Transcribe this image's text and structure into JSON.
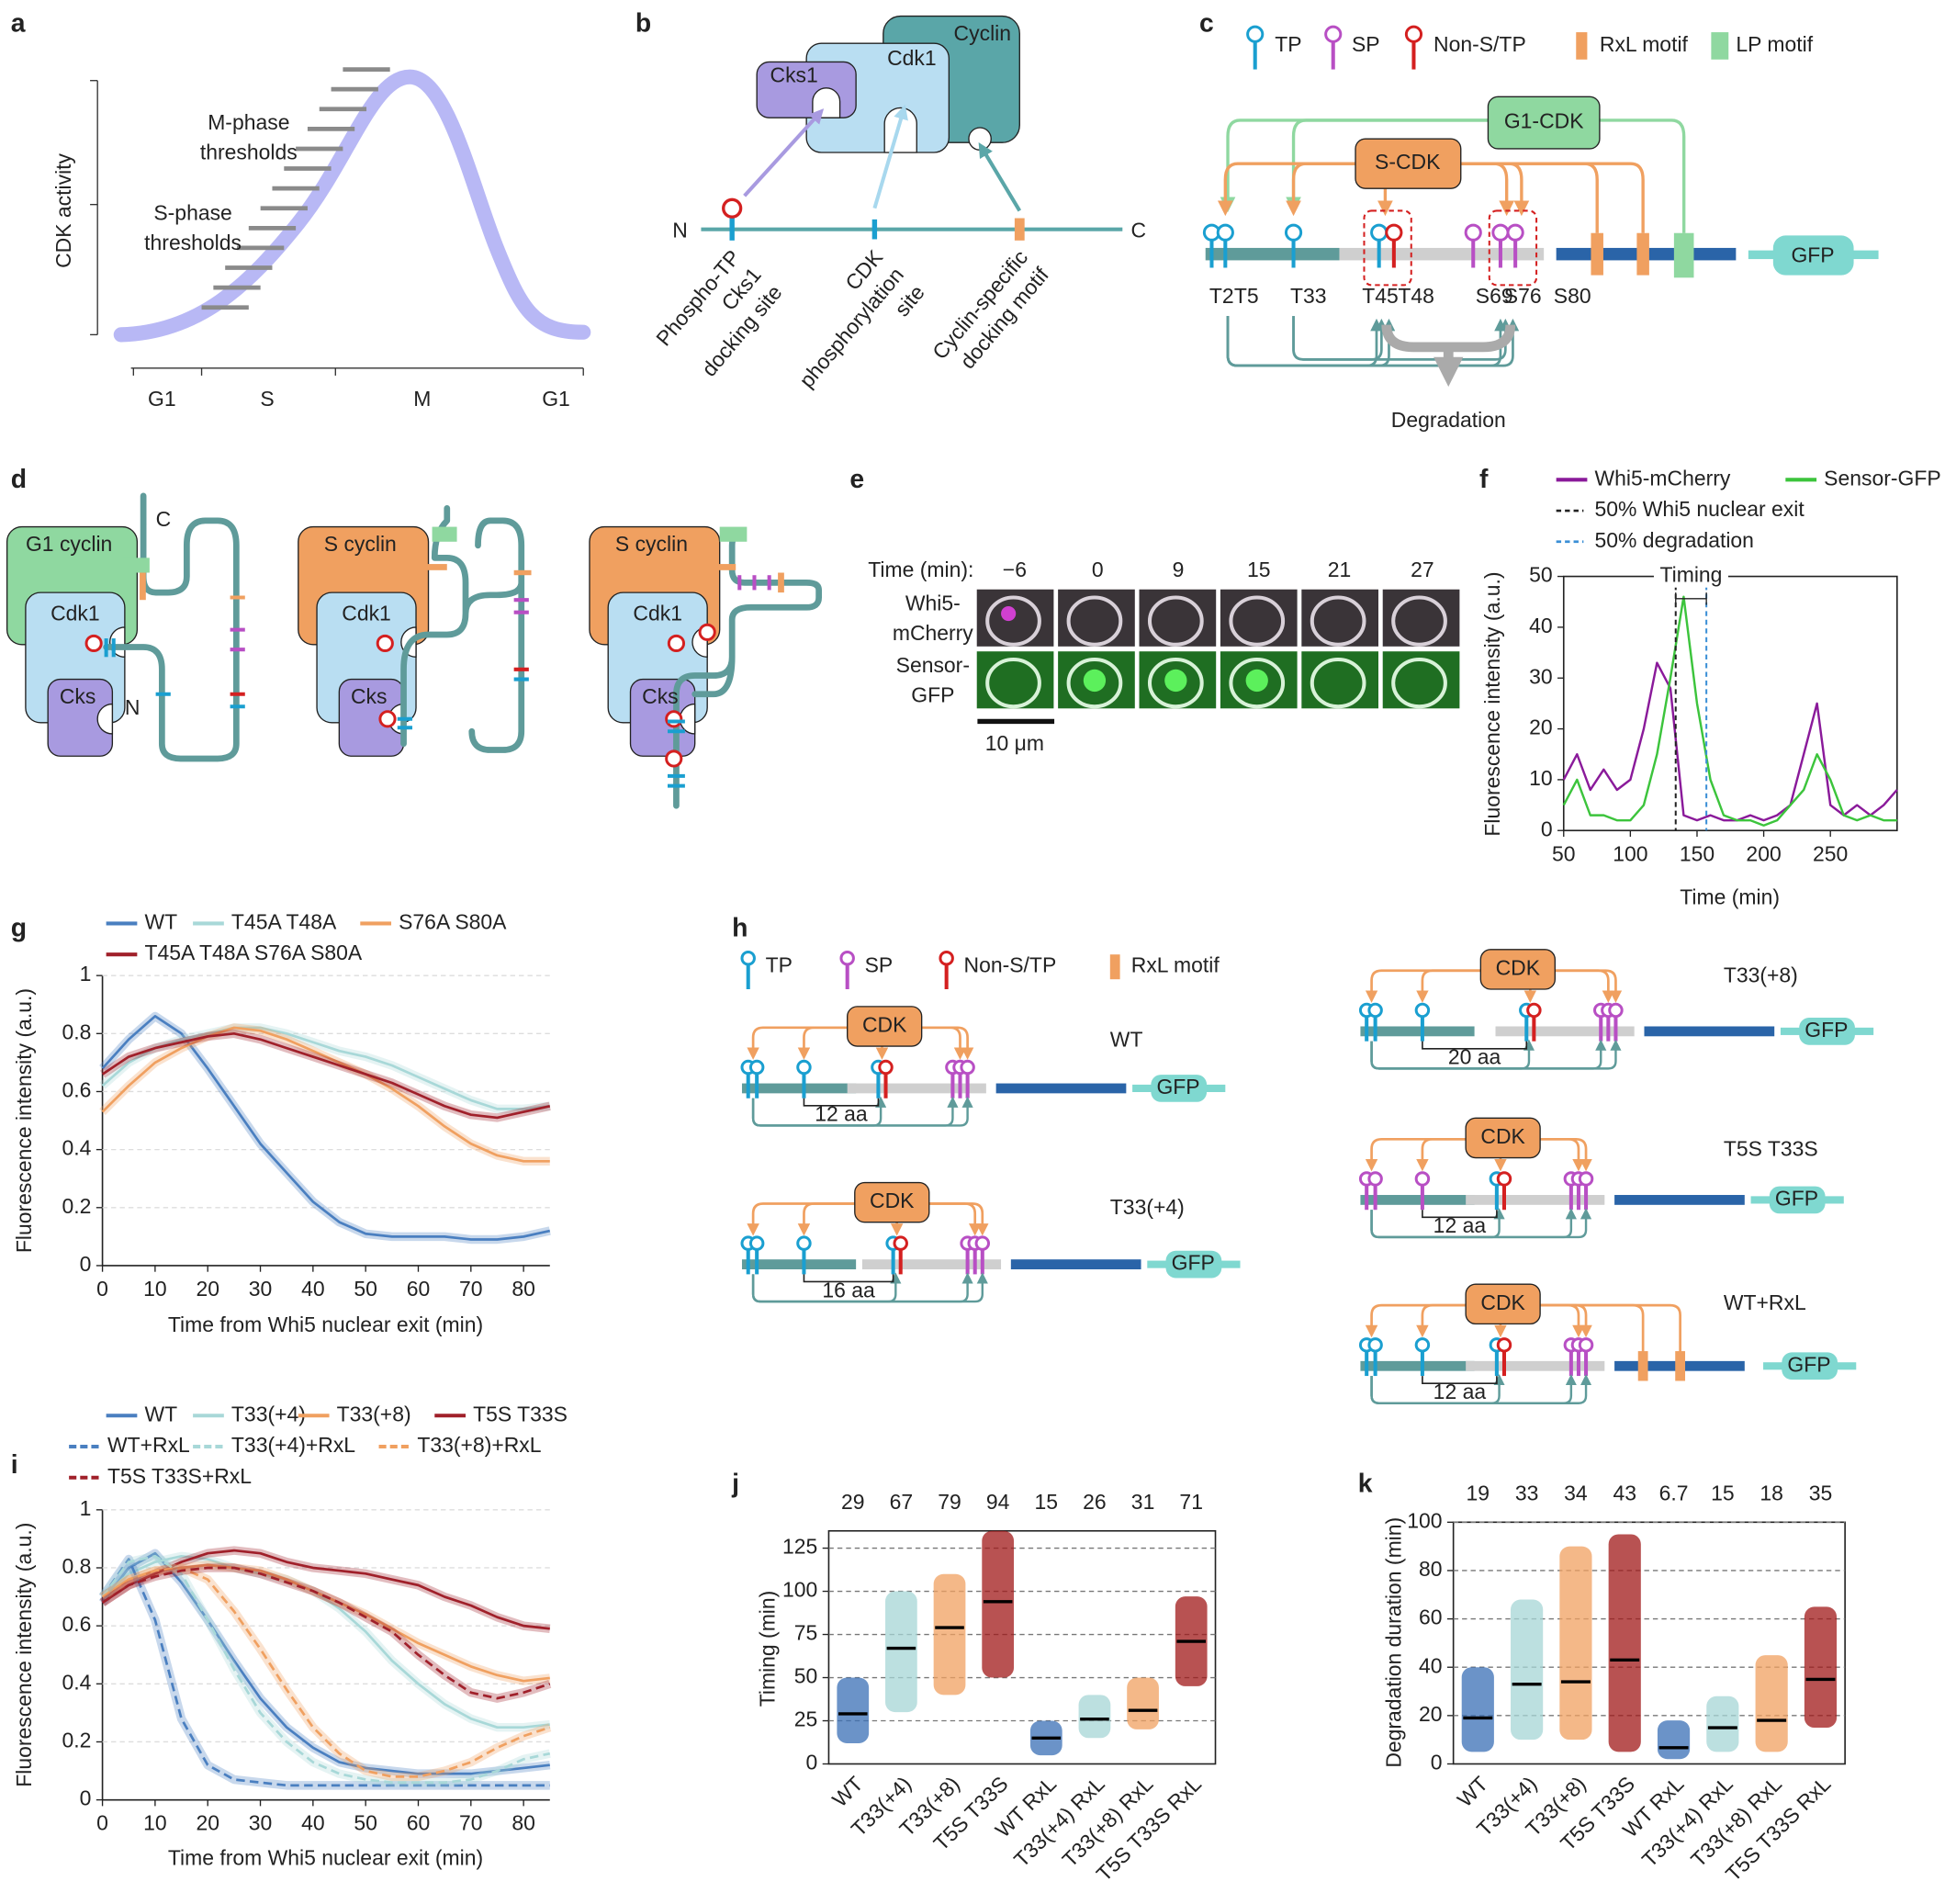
{
  "panel_labels": [
    "a",
    "b",
    "c",
    "d",
    "e",
    "f",
    "g",
    "h",
    "i",
    "j",
    "k"
  ],
  "a": {
    "y_label": "CDK activity",
    "m_phase": [
      "M-phase",
      "thresholds"
    ],
    "s_phase": [
      "S-phase",
      "thresholds"
    ],
    "phases": [
      "G1",
      "S",
      "M",
      "G1"
    ]
  },
  "b": {
    "proteins": [
      "Cyclin",
      "Cdk1",
      "Cks1"
    ],
    "n_term": "N",
    "c_term": "C",
    "sites": [
      [
        "Phospho-TP",
        "Cks1",
        "docking site"
      ],
      [
        "CDK",
        "phosphorylation",
        "site"
      ],
      [
        "Cyclin-specific",
        "docking motif"
      ]
    ]
  },
  "c": {
    "legend": [
      "TP",
      "SP",
      "Non-S/TP",
      "RxL motif",
      "LP motif"
    ],
    "kinases": [
      "G1-CDK",
      "S-CDK"
    ],
    "sites": [
      "T2",
      "T5",
      "T33",
      "T45",
      "T48",
      "S69",
      "S76",
      "S80"
    ],
    "reporter": "GFP",
    "outcome": "Degradation"
  },
  "d": {
    "complexes": [
      {
        "cyclin": "G1 cyclin",
        "cdk": "Cdk1",
        "cks": "Cks"
      },
      {
        "cyclin": "S cyclin",
        "cdk": "Cdk1",
        "cks": "Cks"
      },
      {
        "cyclin": "S cyclin",
        "cdk": "Cdk1",
        "cks": "Cks"
      }
    ],
    "c_term": "C",
    "n_term": "N"
  },
  "e": {
    "time_label": "Time (min):",
    "times": [
      "−6",
      "0",
      "9",
      "15",
      "21",
      "27"
    ],
    "rows": [
      [
        "Whi5-",
        "mCherry"
      ],
      [
        "Sensor-",
        "GFP"
      ]
    ],
    "scale_bar": "10 μm"
  },
  "h": {
    "legend": [
      "TP",
      "SP",
      "Non-S/TP",
      "RxL motif"
    ],
    "constructs": [
      {
        "name": "WT",
        "kinase": "CDK",
        "spacing": "12 aa",
        "reporter": "GFP"
      },
      {
        "name": "T33(+4)",
        "kinase": "CDK",
        "spacing": "16 aa",
        "reporter": "GFP"
      },
      {
        "name": "T33(+8)",
        "kinase": "CDK",
        "spacing": "20 aa",
        "reporter": "GFP"
      },
      {
        "name": "T5S T33S",
        "kinase": "CDK",
        "spacing": "12 aa",
        "reporter": "GFP"
      },
      {
        "name": "WT+RxL",
        "kinase": "CDK",
        "spacing": "12 aa",
        "reporter": "GFP"
      }
    ]
  },
  "chart_data": [
    {
      "type": "line",
      "x_label": "Time (min)",
      "y_label": "Fluorescence intensity (a.u.)",
      "xlim": [
        50,
        300
      ],
      "ylim": [
        0,
        50
      ],
      "xticks": [
        50,
        100,
        150,
        200,
        250
      ],
      "yticks": [
        0,
        10,
        20,
        30,
        40,
        50
      ],
      "x": [
        50,
        60,
        70,
        80,
        90,
        100,
        110,
        120,
        130,
        140,
        150,
        160,
        170,
        180,
        190,
        200,
        210,
        220,
        230,
        240,
        250,
        260,
        270,
        280,
        290,
        300
      ],
      "series": [
        {
          "name": "Whi5-mCherry",
          "color": "#8a1a9a",
          "values": [
            10,
            15,
            8,
            12,
            8,
            10,
            20,
            33,
            28,
            3,
            2,
            3,
            2,
            2,
            3,
            2,
            3,
            5,
            15,
            25,
            5,
            3,
            5,
            3,
            5,
            8
          ]
        },
        {
          "name": "Sensor-GFP",
          "color": "#3cc43c",
          "values": [
            5,
            10,
            3,
            3,
            2,
            2,
            5,
            15,
            30,
            46,
            25,
            10,
            3,
            2,
            2,
            1,
            2,
            5,
            8,
            15,
            10,
            3,
            2,
            3,
            2,
            2
          ]
        }
      ],
      "markers": [
        {
          "name": "50% Whi5 nuclear exit",
          "x": 134,
          "color": "#222222"
        },
        {
          "name": "50% degradation",
          "x": 157,
          "color": "#3b8fd6"
        }
      ],
      "annotation": "Timing"
    },
    {
      "type": "line",
      "x_label": "Time from Whi5 nuclear exit (min)",
      "y_label": "Fluorescence intensity (a.u.)",
      "xlim": [
        0,
        85
      ],
      "ylim": [
        0,
        1
      ],
      "xticks": [
        0,
        10,
        20,
        30,
        40,
        50,
        60,
        70,
        80
      ],
      "yticks": [
        0,
        0.2,
        0.4,
        0.6,
        0.8,
        1
      ],
      "grid": true,
      "x": [
        0,
        5,
        10,
        15,
        20,
        25,
        30,
        35,
        40,
        45,
        50,
        55,
        60,
        65,
        70,
        75,
        80,
        85
      ],
      "series": [
        {
          "name": "WT",
          "color": "#4a7fc0",
          "values": [
            0.68,
            0.78,
            0.86,
            0.8,
            0.68,
            0.55,
            0.42,
            0.32,
            0.22,
            0.15,
            0.11,
            0.1,
            0.1,
            0.1,
            0.09,
            0.09,
            0.1,
            0.12
          ]
        },
        {
          "name": "T45A T48A",
          "color": "#a8d8d8",
          "values": [
            0.62,
            0.7,
            0.75,
            0.78,
            0.8,
            0.82,
            0.82,
            0.8,
            0.77,
            0.74,
            0.72,
            0.69,
            0.65,
            0.61,
            0.57,
            0.54,
            0.54,
            0.55
          ]
        },
        {
          "name": "S76A S80A",
          "color": "#f0a060",
          "values": [
            0.53,
            0.62,
            0.7,
            0.75,
            0.79,
            0.82,
            0.81,
            0.78,
            0.74,
            0.7,
            0.66,
            0.61,
            0.55,
            0.48,
            0.42,
            0.38,
            0.36,
            0.36
          ]
        },
        {
          "name": "T45A T48A S76A S80A",
          "color": "#a0202a",
          "values": [
            0.66,
            0.72,
            0.75,
            0.77,
            0.79,
            0.8,
            0.78,
            0.75,
            0.72,
            0.69,
            0.66,
            0.63,
            0.59,
            0.55,
            0.52,
            0.51,
            0.53,
            0.55
          ]
        }
      ]
    },
    {
      "type": "line",
      "x_label": "Time from Whi5 nuclear exit (min)",
      "y_label": "Fluorescence intensity (a.u.)",
      "xlim": [
        0,
        85
      ],
      "ylim": [
        0,
        1
      ],
      "xticks": [
        0,
        10,
        20,
        30,
        40,
        50,
        60,
        70,
        80
      ],
      "yticks": [
        0,
        0.2,
        0.4,
        0.6,
        0.8,
        1
      ],
      "grid": true,
      "x": [
        0,
        5,
        10,
        15,
        20,
        25,
        30,
        35,
        40,
        45,
        50,
        55,
        60,
        65,
        70,
        75,
        80,
        85
      ],
      "series": [
        {
          "name": "WT",
          "color": "#4a7fc0",
          "values": [
            0.68,
            0.8,
            0.85,
            0.75,
            0.62,
            0.48,
            0.35,
            0.25,
            0.18,
            0.13,
            0.11,
            0.1,
            0.09,
            0.09,
            0.09,
            0.1,
            0.11,
            0.12
          ]
        },
        {
          "name": "T33(+4)",
          "color": "#a8d8d8",
          "values": [
            0.7,
            0.78,
            0.82,
            0.84,
            0.83,
            0.8,
            0.78,
            0.76,
            0.72,
            0.66,
            0.58,
            0.48,
            0.4,
            0.33,
            0.28,
            0.25,
            0.25,
            0.26
          ]
        },
        {
          "name": "T33(+8)",
          "color": "#f0a060",
          "values": [
            0.7,
            0.76,
            0.79,
            0.8,
            0.81,
            0.8,
            0.79,
            0.76,
            0.72,
            0.68,
            0.64,
            0.59,
            0.54,
            0.5,
            0.46,
            0.43,
            0.41,
            0.42
          ]
        },
        {
          "name": "T5S T33S",
          "color": "#a0202a",
          "values": [
            0.68,
            0.74,
            0.78,
            0.82,
            0.85,
            0.86,
            0.85,
            0.82,
            0.8,
            0.79,
            0.78,
            0.76,
            0.74,
            0.7,
            0.67,
            0.63,
            0.6,
            0.59
          ]
        },
        {
          "name": "WT+RxL",
          "color": "#4a7fc0",
          "dash": true,
          "values": [
            0.7,
            0.83,
            0.62,
            0.28,
            0.12,
            0.07,
            0.06,
            0.05,
            0.05,
            0.05,
            0.05,
            0.05,
            0.05,
            0.05,
            0.05,
            0.05,
            0.05,
            0.05
          ]
        },
        {
          "name": "T33(+4)+RxL",
          "color": "#a8d8d8",
          "dash": true,
          "values": [
            0.7,
            0.82,
            0.84,
            0.78,
            0.62,
            0.45,
            0.3,
            0.2,
            0.13,
            0.09,
            0.07,
            0.06,
            0.06,
            0.06,
            0.07,
            0.1,
            0.14,
            0.16
          ]
        },
        {
          "name": "T33(+8)+RxL",
          "color": "#f0a060",
          "dash": true,
          "values": [
            0.7,
            0.76,
            0.79,
            0.8,
            0.76,
            0.65,
            0.52,
            0.38,
            0.25,
            0.16,
            0.1,
            0.08,
            0.08,
            0.1,
            0.13,
            0.18,
            0.22,
            0.25
          ]
        },
        {
          "name": "T5S T33S+RxL",
          "color": "#a0202a",
          "dash": true,
          "values": [
            0.68,
            0.74,
            0.77,
            0.79,
            0.8,
            0.8,
            0.78,
            0.75,
            0.72,
            0.68,
            0.63,
            0.58,
            0.5,
            0.43,
            0.37,
            0.35,
            0.37,
            0.4
          ]
        }
      ]
    },
    {
      "type": "dot",
      "y_label": "Timing (min)",
      "ylim": [
        0,
        135
      ],
      "yticks": [
        0,
        25,
        50,
        75,
        100,
        125
      ],
      "grid": true,
      "categories": [
        "WT",
        "T33(+4)",
        "T33(+8)",
        "T5S T33S",
        "WT RxL",
        "T33(+4) RxL",
        "T33(+8) RxL",
        "T5S T33S RxL"
      ],
      "values": [
        29,
        67,
        79,
        94,
        15,
        26,
        31,
        71
      ],
      "ranges": [
        [
          12,
          50
        ],
        [
          30,
          100
        ],
        [
          40,
          110
        ],
        [
          50,
          135
        ],
        [
          5,
          25
        ],
        [
          15,
          40
        ],
        [
          20,
          50
        ],
        [
          45,
          97
        ]
      ],
      "colors": [
        "#3a6fb5",
        "#a6d6d6",
        "#f0a060",
        "#a01818",
        "#3a6fb5",
        "#a6d6d6",
        "#f0a060",
        "#a01818"
      ]
    },
    {
      "type": "dot",
      "y_label": "Degradation duration (min)",
      "ylim": [
        0,
        100
      ],
      "yticks": [
        0,
        20,
        40,
        60,
        80,
        100
      ],
      "grid": true,
      "categories": [
        "WT",
        "T33(+4)",
        "T33(+8)",
        "T5S T33S",
        "WT RxL",
        "T33(+4) RxL",
        "T33(+8) RxL",
        "T5S T33S RxL"
      ],
      "values": [
        19,
        33,
        34,
        43,
        6.7,
        15,
        18,
        35
      ],
      "ranges": [
        [
          5,
          40
        ],
        [
          10,
          68
        ],
        [
          10,
          90
        ],
        [
          5,
          95
        ],
        [
          2,
          18
        ],
        [
          5,
          28
        ],
        [
          5,
          45
        ],
        [
          15,
          65
        ]
      ],
      "colors": [
        "#3a6fb5",
        "#a6d6d6",
        "#f0a060",
        "#a01818",
        "#3a6fb5",
        "#a6d6d6",
        "#f0a060",
        "#a01818"
      ]
    }
  ]
}
